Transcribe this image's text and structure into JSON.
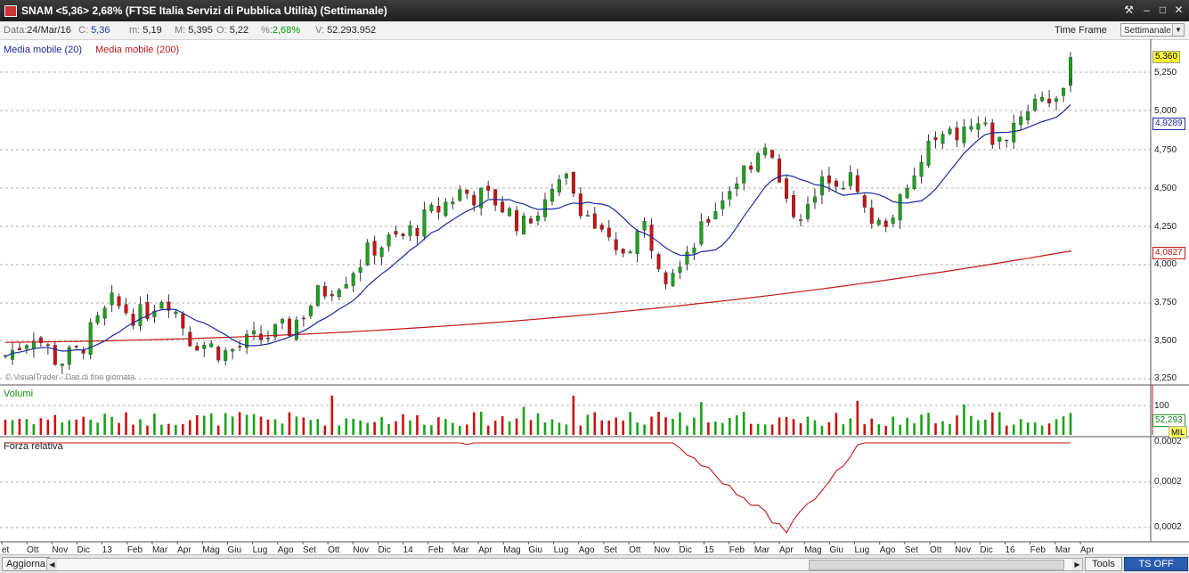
{
  "window": {
    "title": "SNAM <5,36> 2,68%  (FTSE Italia Servizi di Pubblica Utilità)  (Settimanale)",
    "buttons": [
      "⚒",
      "‒",
      "□",
      "✕"
    ]
  },
  "infobar": {
    "data_label": "Data:",
    "data_value": "24/Mar/16",
    "close_label": "C:",
    "close_value": "5,36",
    "min_label": "m:",
    "min_value": "5,19",
    "max_label": "M:",
    "max_value": "5,395",
    "open_label": "O:",
    "open_value": "5,22",
    "pct_label": "%:",
    "pct_value": "2,68%",
    "vol_label": "V:",
    "vol_value": "52.293.952",
    "timeframe_label": "Time Frame",
    "timeframe_value": "Settimanale"
  },
  "legend": {
    "ma20": "Media mobile (20)",
    "ma200": "Media mobile (200)",
    "watermark": "© VisualTrader - Dati di fine giornata",
    "volume": "Volumi",
    "rs": "Forza relativa"
  },
  "price_axis": [
    "5,250",
    "5,000",
    "4,750",
    "4,500",
    "4,250",
    "4,000",
    "3,750",
    "3,500",
    "3,250"
  ],
  "price_tags": {
    "last": "5,360",
    "ma20": "4,9289",
    "ma200": "4,0827"
  },
  "volume_axis": {
    "tick": "100",
    "last": "52,293",
    "unit": "MIL"
  },
  "rs_axis": [
    "0,0002",
    "0,0002",
    "0,0002"
  ],
  "x_axis": [
    "et",
    "Ott",
    "Nov",
    "Dic",
    "13",
    "Feb",
    "Mar",
    "Apr",
    "Mag",
    "Giu",
    "Lug",
    "Ago",
    "Set",
    "Ott",
    "Nov",
    "Dic",
    "14",
    "Feb",
    "Mar",
    "Apr",
    "Mag",
    "Giu",
    "Lug",
    "Ago",
    "Set",
    "Ott",
    "Nov",
    "Dic",
    "15",
    "Feb",
    "Mar",
    "Apr",
    "Mag",
    "Giu",
    "Lug",
    "Ago",
    "Set",
    "Ott",
    "Nov",
    "Dic",
    "16",
    "Feb",
    "Mar",
    "Apr"
  ],
  "statusbar": {
    "refresh": "Aggiorna",
    "tools": "Tools",
    "ts": "TS OFF"
  },
  "colors": {
    "up": "#1aa31a",
    "down": "#cc1111",
    "ma20": "#1a2aa0",
    "ma200": "#c01818",
    "rs": "#c01818",
    "grid": "#9a9a9a"
  },
  "chart_data": {
    "type": "candlestick",
    "series": [
      {
        "name": "SNAM",
        "anchors": [
          [
            0,
            3.4
          ],
          [
            8,
            3.55
          ],
          [
            15,
            3.36
          ],
          [
            20,
            3.42
          ],
          [
            30,
            3.74
          ],
          [
            38,
            3.66
          ],
          [
            45,
            3.82
          ],
          [
            52,
            3.52
          ],
          [
            62,
            3.42
          ],
          [
            70,
            3.5
          ],
          [
            80,
            3.58
          ],
          [
            88,
            3.8
          ],
          [
            96,
            3.93
          ],
          [
            104,
            4.12
          ],
          [
            112,
            4.18
          ],
          [
            120,
            4.33
          ],
          [
            128,
            4.48
          ],
          [
            138,
            4.42
          ],
          [
            146,
            4.25
          ],
          [
            152,
            4.4
          ],
          [
            158,
            4.55
          ],
          [
            166,
            4.25
          ],
          [
            172,
            4.05
          ],
          [
            180,
            4.25
          ],
          [
            186,
            3.95
          ],
          [
            194,
            4.17
          ],
          [
            202,
            4.45
          ],
          [
            208,
            4.62
          ],
          [
            214,
            4.82
          ],
          [
            220,
            4.38
          ],
          [
            226,
            4.35
          ],
          [
            232,
            4.6
          ],
          [
            238,
            4.55
          ],
          [
            242,
            4.35
          ],
          [
            246,
            4.25
          ],
          [
            254,
            4.45
          ],
          [
            260,
            4.78
          ],
          [
            268,
            4.85
          ],
          [
            274,
            4.92
          ],
          [
            280,
            4.8
          ],
          [
            286,
            5.0
          ],
          [
            292,
            5.12
          ],
          [
            298,
            5.08
          ],
          [
            300,
            5.36
          ]
        ]
      },
      {
        "name": "Media mobile (20)"
      },
      {
        "name": "Media mobile (200)"
      },
      {
        "name": "Volumi",
        "values_note": "weekly volume bars"
      },
      {
        "name": "Forza relativa",
        "anchors": [
          [
            0,
            0.00015
          ],
          [
            30,
            0.00015
          ],
          [
            50,
            0.00016
          ],
          [
            70,
            0.00016
          ],
          [
            100,
            0.00015
          ],
          [
            130,
            0.00014
          ],
          [
            160,
            0.00015
          ],
          [
            190,
            0.00014
          ],
          [
            220,
            0.00013
          ],
          [
            240,
            0.00014
          ],
          [
            250,
            0.00015
          ],
          [
            262,
            0.00016
          ],
          [
            266,
            0.00017
          ],
          [
            280,
            0.00021
          ],
          [
            288,
            0.0002
          ],
          [
            292,
            0.00018
          ],
          [
            298,
            0.0002
          ],
          [
            300,
            0.00022
          ]
        ]
      }
    ],
    "n_weeks": 301,
    "ylim_price": [
      3.2,
      5.45
    ],
    "last_close": 5.36,
    "ma20_last": 4.9289,
    "ma200_last": 4.0827,
    "last_volume": 52.293952
  }
}
